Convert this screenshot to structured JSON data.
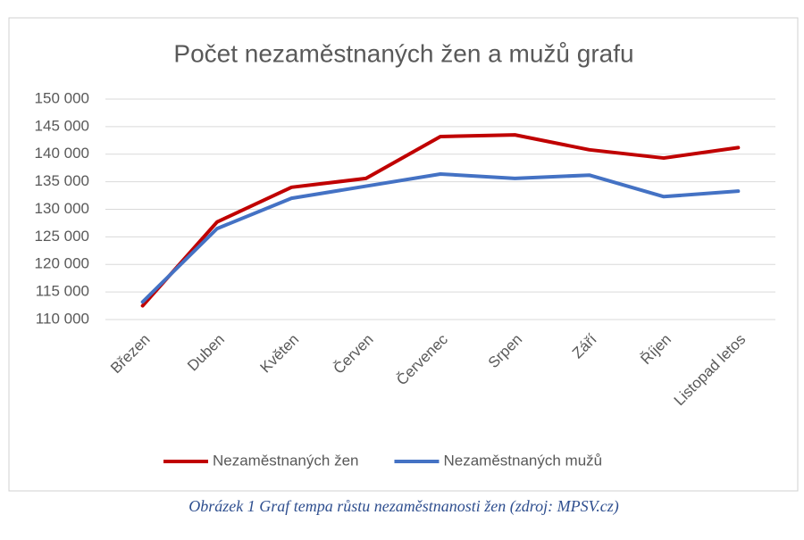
{
  "chart_data": {
    "type": "line",
    "title": "Počet nezaměstnaných žen a mužů grafu",
    "categories": [
      "Březen",
      "Duben",
      "Květen",
      "Červen",
      "Červenec",
      "Srpen",
      "Září",
      "Říjen",
      "Listopad letos"
    ],
    "series": [
      {
        "name": "Nezaměstnaných žen",
        "color": "#c00000",
        "values": [
          112500,
          127700,
          134000,
          135600,
          143200,
          143500,
          140800,
          139300,
          141200
        ]
      },
      {
        "name": "Nezaměstnaných mužů",
        "color": "#4472c4",
        "values": [
          113200,
          126500,
          132000,
          134200,
          136400,
          135600,
          136200,
          132300,
          133300
        ]
      }
    ],
    "ylim": [
      110000,
      150000
    ],
    "yticks": [
      {
        "value": 110000,
        "label": "110 000"
      },
      {
        "value": 115000,
        "label": "115 000"
      },
      {
        "value": 120000,
        "label": "120 000"
      },
      {
        "value": 125000,
        "label": "125 000"
      },
      {
        "value": 130000,
        "label": "130 000"
      },
      {
        "value": 135000,
        "label": "135 000"
      },
      {
        "value": 140000,
        "label": "140 000"
      },
      {
        "value": 145000,
        "label": "145 000"
      },
      {
        "value": 150000,
        "label": "150 000"
      }
    ],
    "grid": true,
    "legend": "bottom"
  },
  "caption": "Obrázek 1 Graf tempa růstu nezaměstnanosti žen (zdroj: MPSV.cz)"
}
